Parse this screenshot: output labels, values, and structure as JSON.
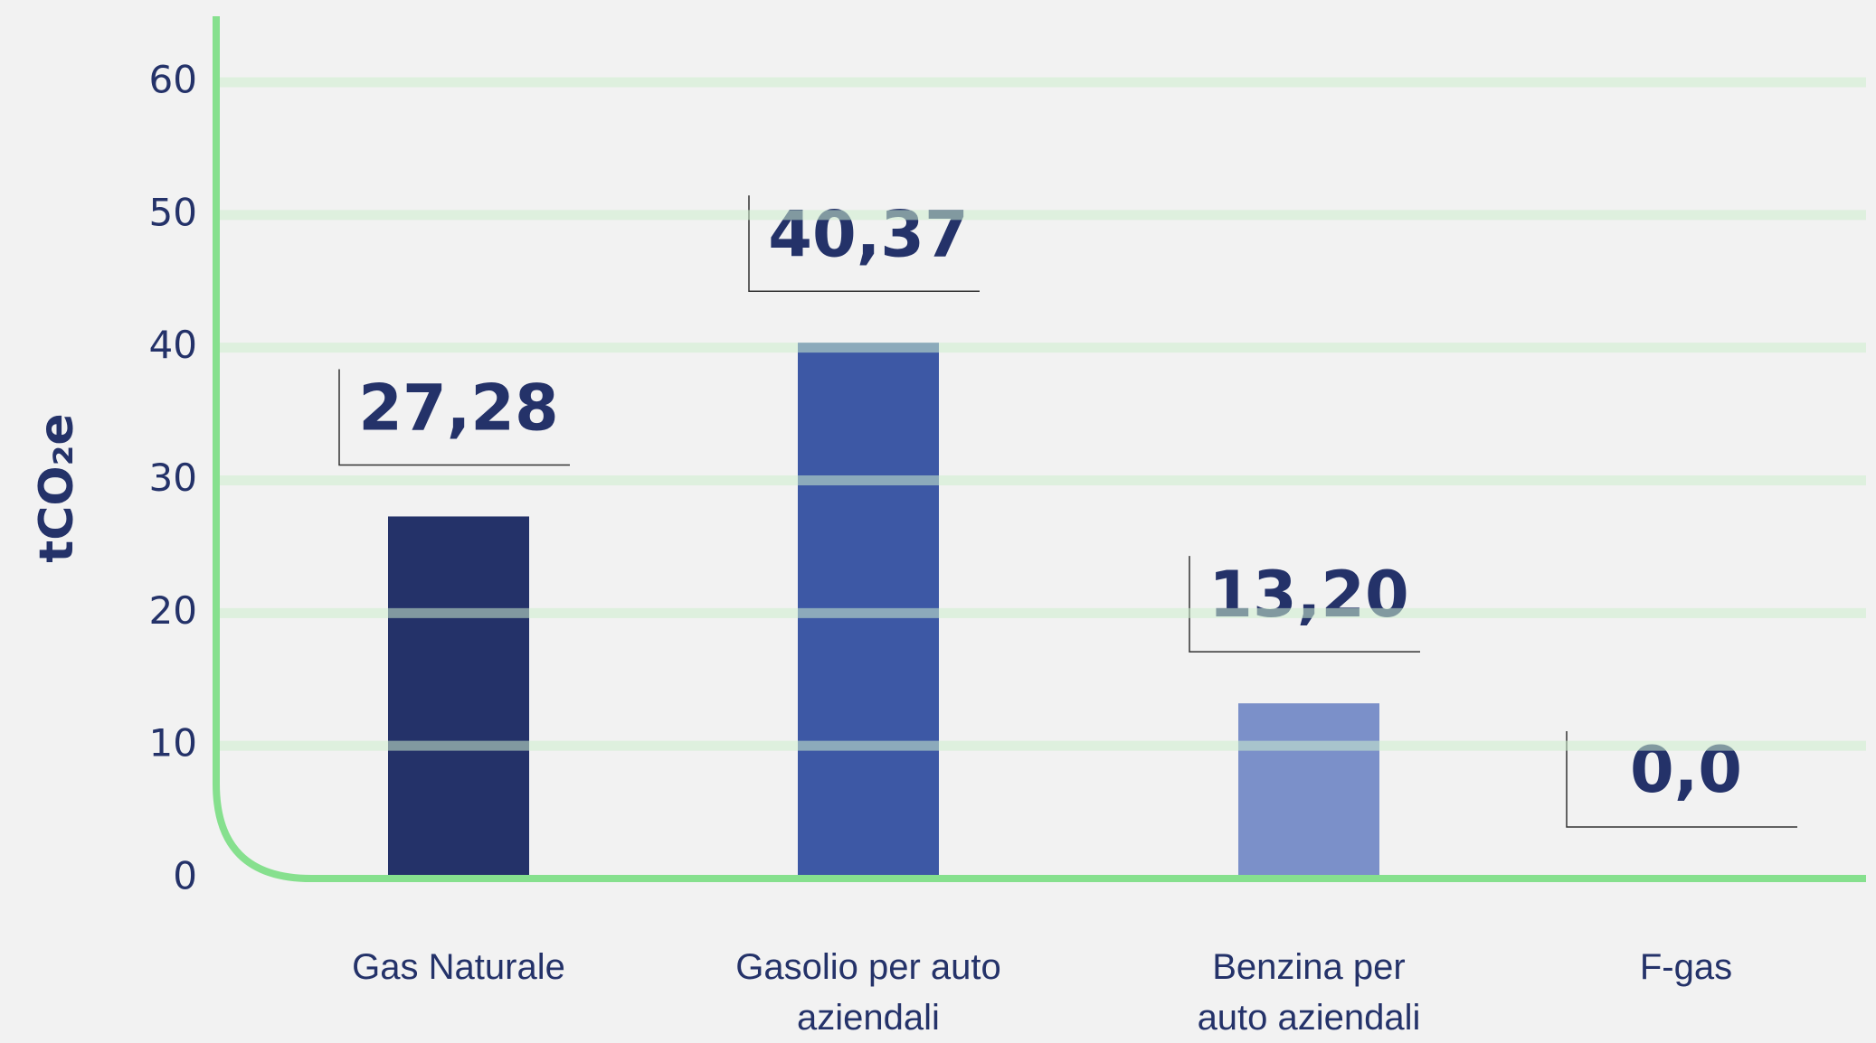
{
  "chart_data": {
    "type": "bar",
    "y_label": "tCO₂e",
    "categories": [
      "Gas Naturale",
      "Gasolio per auto aziendali",
      "Benzina per auto aziendali",
      "F-gas"
    ],
    "values": [
      27.28,
      40.37,
      13.2,
      0.0
    ],
    "value_labels": [
      "27,28",
      "40,37",
      "13,20",
      "0,0"
    ],
    "colors": [
      "#243269",
      "#3d58a5",
      "#7b90c9",
      "#7b90c9"
    ],
    "ylim": [
      0,
      60
    ],
    "yticks": [
      0,
      10,
      20,
      30,
      40,
      50,
      60
    ],
    "grid": true
  }
}
